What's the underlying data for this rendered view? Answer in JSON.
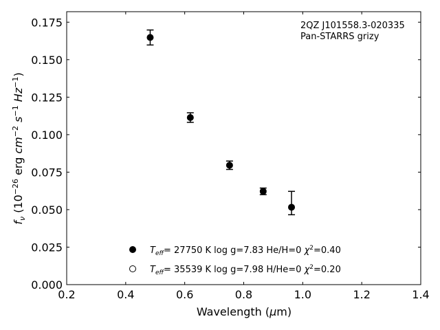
{
  "chart_data": {
    "type": "scatter",
    "title": "",
    "annotation_lines": [
      "2QZ J101558.3-020335",
      "Pan-STARRS grizy"
    ],
    "xlabel": "Wavelength (μm)",
    "ylabel": "f_ν (10^-26 erg cm^-2 s^-1 Hz^-1)",
    "xlim": [
      0.2,
      1.4
    ],
    "ylim": [
      0.0,
      0.182
    ],
    "xticks": [
      0.2,
      0.4,
      0.6,
      0.8,
      1.0,
      1.2,
      1.4
    ],
    "xtick_labels": [
      "0.2",
      "0.4",
      "0.6",
      "0.8",
      "1.0",
      "1.2",
      "1.4"
    ],
    "yticks": [
      0.0,
      0.025,
      0.05,
      0.075,
      0.1,
      0.125,
      0.15,
      0.175
    ],
    "ytick_labels": [
      "0.000",
      "0.025",
      "0.050",
      "0.075",
      "0.100",
      "0.125",
      "0.150",
      "0.175"
    ],
    "grid": false,
    "legend_placement": "lower-center",
    "series": [
      {
        "name": "T_eff= 27750 K  log g=7.83  He/H=0  χ²=0.40",
        "marker": "filled-circle",
        "color": "#000000",
        "points": [
          {
            "x": 0.483,
            "y": 0.1648,
            "err_low": 0.005,
            "err_high": 0.005
          },
          {
            "x": 0.619,
            "y": 0.1114,
            "err_low": 0.0032,
            "err_high": 0.0032
          },
          {
            "x": 0.752,
            "y": 0.0796,
            "err_low": 0.0028,
            "err_high": 0.0028
          },
          {
            "x": 0.866,
            "y": 0.0622,
            "err_low": 0.0022,
            "err_high": 0.0022
          },
          {
            "x": 0.962,
            "y": 0.0516,
            "err_low": 0.005,
            "err_high": 0.0106
          }
        ]
      },
      {
        "name": "T_eff= 35539 K  log g=7.98  H/He=0  χ²=0.20",
        "marker": "open-circle",
        "color": "#000000",
        "points": []
      }
    ]
  }
}
